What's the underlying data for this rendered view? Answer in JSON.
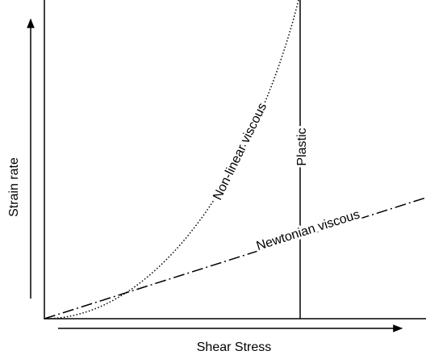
{
  "x_axis_label": "Shear Stress",
  "y_axis_label": "Strain rate",
  "curves": [
    {
      "label": "Non-linear viscous"
    },
    {
      "label": "Plastic"
    },
    {
      "label": "Newtonian viscous"
    }
  ]
}
